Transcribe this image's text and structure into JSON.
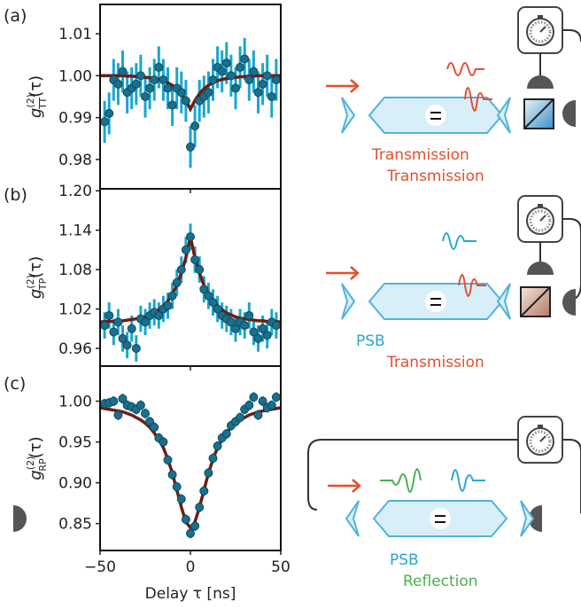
{
  "chart_data": [
    {
      "type": "scatter",
      "panel": "(a)",
      "ylabel": {
        "base": "g",
        "sup": "(2)",
        "sub": "TT",
        "arg": "(τ)"
      },
      "xlim": [
        -50,
        50
      ],
      "xticks": [
        -50,
        0,
        50
      ],
      "ylim": [
        0.973,
        1.017
      ],
      "yticks": [
        0.98,
        0.99,
        {
          "value": 1,
          "label": "1.00"
        },
        1.01
      ],
      "series": [
        {
          "color": "#1a6f8c",
          "error_color": "#1aa6cf",
          "x": [
            -47.5,
            -45,
            -42.5,
            -40,
            -37.5,
            -35,
            -32.5,
            -30,
            -27.5,
            -25,
            -22.5,
            -20,
            -17.5,
            -15,
            -12.5,
            -10,
            -7.5,
            -5,
            -2.5,
            0,
            2.5,
            5,
            7.5,
            10,
            12.5,
            15,
            17.5,
            20,
            22.5,
            25,
            27.5,
            30,
            32.5,
            35,
            37.5,
            40,
            42.5,
            45,
            47.5
          ],
          "values": [
            0.989,
            0.991,
            0.999,
            0.998,
            1.001,
            0.996,
            0.997,
            0.998,
            1.0,
            0.995,
            0.997,
            0.999,
            1.002,
            0.999,
            0.997,
            0.993,
            0.997,
            0.996,
            0.994,
            0.983,
            0.988,
            0.994,
            0.995,
            0.996,
            0.999,
            1.002,
            1.001,
            1.003,
            1.0,
            0.997,
            1.002,
            1.004,
            0.999,
            1.001,
            0.996,
            0.998,
            1.0,
            0.995,
            0.999
          ],
          "errors": [
            0.005,
            0.005,
            0.005,
            0.005,
            0.005,
            0.005,
            0.005,
            0.005,
            0.005,
            0.005,
            0.005,
            0.005,
            0.005,
            0.005,
            0.005,
            0.005,
            0.005,
            0.005,
            0.005,
            0.005,
            0.005,
            0.005,
            0.005,
            0.005,
            0.005,
            0.005,
            0.005,
            0.005,
            0.005,
            0.005,
            0.005,
            0.005,
            0.005,
            0.005,
            0.005,
            0.005,
            0.005,
            0.005,
            0.005
          ]
        }
      ],
      "fit": {
        "color": "#6e1d0f",
        "x": [
          -50,
          -47.5,
          -45,
          -42.5,
          -40,
          -37.5,
          -35,
          -32.5,
          -30,
          -27.5,
          -25,
          -22.5,
          -20,
          -17.5,
          -15,
          -12.5,
          -10,
          -7.5,
          -5,
          -2.5,
          0,
          2.5,
          5,
          7.5,
          10,
          12.5,
          15,
          17.5,
          20,
          22.5,
          25,
          27.5,
          30,
          32.5,
          35,
          37.5,
          40,
          42.5,
          45,
          47.5,
          50
        ],
        "values": [
          1.0,
          1.0,
          1.0,
          1.0,
          1.0,
          1.0,
          0.9999,
          0.9999,
          0.9998,
          0.9997,
          0.9996,
          0.9995,
          0.9993,
          0.9991,
          0.9988,
          0.9983,
          0.9977,
          0.9969,
          0.9957,
          0.9941,
          0.992,
          0.9941,
          0.9957,
          0.9969,
          0.9977,
          0.9983,
          0.9988,
          0.9991,
          0.9993,
          0.9995,
          0.9996,
          0.9997,
          0.9998,
          0.9999,
          0.9999,
          1.0,
          1.0,
          1.0,
          1.0,
          1.0,
          1.0
        ]
      }
    },
    {
      "type": "scatter",
      "panel": "(b)",
      "ylabel": {
        "base": "g",
        "sup": "(2)",
        "sub": "TP",
        "arg": "(τ)"
      },
      "xlim": [
        -50,
        50
      ],
      "xticks": [
        -50,
        0,
        50
      ],
      "ylim": [
        0.933,
        1.203
      ],
      "yticks": [
        0.96,
        1.02,
        1.08,
        1.14,
        {
          "value": 1.2,
          "label": "1.20"
        }
      ],
      "series": [
        {
          "color": "#1a6f8c",
          "error_color": "#1aa6cf",
          "x": [
            -47.5,
            -45,
            -42.5,
            -40,
            -37.5,
            -35,
            -32.5,
            -30,
            -27.5,
            -25,
            -22.5,
            -20,
            -17.5,
            -15,
            -12.5,
            -10,
            -7.5,
            -5,
            -2.5,
            0,
            2.5,
            5,
            7.5,
            10,
            12.5,
            15,
            17.5,
            20,
            22.5,
            25,
            27.5,
            30,
            32.5,
            35,
            37.5,
            40,
            42.5,
            45,
            47.5
          ],
          "values": [
            0.995,
            1.01,
            0.985,
            1.0,
            0.975,
            0.965,
            0.99,
            0.96,
            1.005,
            1.0,
            1.01,
            1.015,
            1.01,
            1.02,
            1.025,
            1.04,
            1.06,
            1.08,
            1.11,
            1.13,
            1.095,
            1.08,
            1.05,
            1.04,
            1.03,
            1.02,
            1.01,
            1.005,
            1.0,
            0.99,
            1.0,
            0.995,
            1.01,
            0.985,
            0.975,
            0.99,
            0.98,
            1.0,
            0.995
          ],
          "errors": [
            0.02,
            0.02,
            0.02,
            0.02,
            0.02,
            0.02,
            0.02,
            0.02,
            0.02,
            0.02,
            0.02,
            0.02,
            0.02,
            0.02,
            0.02,
            0.02,
            0.02,
            0.02,
            0.02,
            0.02,
            0.02,
            0.02,
            0.02,
            0.02,
            0.02,
            0.02,
            0.02,
            0.02,
            0.02,
            0.02,
            0.02,
            0.02,
            0.02,
            0.02,
            0.02,
            0.02,
            0.02,
            0.02,
            0.02
          ]
        }
      ],
      "fit": {
        "color": "#6e1d0f",
        "x": [
          -50,
          -47.5,
          -45,
          -42.5,
          -40,
          -37.5,
          -35,
          -32.5,
          -30,
          -27.5,
          -25,
          -22.5,
          -20,
          -17.5,
          -15,
          -12.5,
          -10,
          -7.5,
          -5,
          -2.5,
          0,
          2.5,
          5,
          7.5,
          10,
          12.5,
          15,
          17.5,
          20,
          22.5,
          25,
          27.5,
          30,
          32.5,
          35,
          37.5,
          40,
          42.5,
          45,
          47.5,
          50
        ],
        "values": [
          1.0,
          1.001,
          1.001,
          1.001,
          1.002,
          1.002,
          1.003,
          1.004,
          1.005,
          1.006,
          1.008,
          1.011,
          1.014,
          1.019,
          1.025,
          1.032,
          1.043,
          1.056,
          1.075,
          1.098,
          1.13,
          1.098,
          1.075,
          1.056,
          1.043,
          1.032,
          1.025,
          1.019,
          1.014,
          1.011,
          1.008,
          1.006,
          1.005,
          1.004,
          1.003,
          1.002,
          1.002,
          1.001,
          1.001,
          1.001,
          1.0
        ]
      }
    },
    {
      "type": "scatter",
      "panel": "(c)",
      "ylabel": {
        "base": "g",
        "sup": "(2)",
        "sub": "RP",
        "arg": "(τ)"
      },
      "xlabel": "Delay τ [ns]",
      "xlim": [
        -50,
        50
      ],
      "xticks": [
        {
          "value": -50,
          "label": "−50"
        },
        0,
        50
      ],
      "ylim": [
        0.817,
        1.043
      ],
      "yticks": [
        0.85,
        {
          "value": 0.9,
          "label": "0.90"
        },
        0.95,
        {
          "value": 1,
          "label": "1.00"
        }
      ],
      "series": [
        {
          "color": "#1a6f8c",
          "error_color": "#1aa6cf",
          "x": [
            -47.5,
            -45,
            -42.5,
            -40,
            -37.5,
            -35,
            -32.5,
            -30,
            -27.5,
            -25,
            -22.5,
            -20,
            -17.5,
            -15,
            -12.5,
            -10,
            -7.5,
            -5,
            -2.5,
            0,
            2.5,
            5,
            7.5,
            10,
            12.5,
            15,
            17.5,
            20,
            22.5,
            25,
            27.5,
            30,
            32.5,
            35,
            37.5,
            40,
            42.5,
            45,
            47.5
          ],
          "values": [
            0.997,
            0.998,
            1.0,
            0.983,
            1.003,
            0.995,
            0.993,
            0.99,
            0.995,
            0.985,
            0.975,
            0.968,
            0.955,
            0.95,
            0.928,
            0.91,
            0.895,
            0.88,
            0.855,
            0.838,
            0.847,
            0.87,
            0.89,
            0.912,
            0.93,
            0.945,
            0.955,
            0.96,
            0.97,
            0.975,
            0.98,
            0.99,
            0.995,
            1.005,
            0.983,
            1.0,
            0.992,
            0.995,
            1.005
          ],
          "errors": [
            0.006,
            0.006,
            0.006,
            0.006,
            0.006,
            0.006,
            0.006,
            0.006,
            0.006,
            0.006,
            0.006,
            0.006,
            0.006,
            0.006,
            0.006,
            0.006,
            0.006,
            0.006,
            0.006,
            0.006,
            0.006,
            0.006,
            0.006,
            0.006,
            0.006,
            0.006,
            0.006,
            0.006,
            0.006,
            0.006,
            0.006,
            0.006,
            0.006,
            0.006,
            0.006,
            0.006,
            0.006,
            0.006,
            0.006
          ]
        }
      ],
      "fit": {
        "color": "#6e1d0f",
        "x": [
          -50,
          -47.5,
          -45,
          -42.5,
          -40,
          -37.5,
          -35,
          -32.5,
          -30,
          -27.5,
          -25,
          -22.5,
          -20,
          -17.5,
          -15,
          -12.5,
          -10,
          -7.5,
          -5,
          -2.5,
          0,
          2.5,
          5,
          7.5,
          10,
          12.5,
          15,
          17.5,
          20,
          22.5,
          25,
          27.5,
          30,
          32.5,
          35,
          37.5,
          40,
          42.5,
          45,
          47.5,
          50
        ],
        "values": [
          0.992,
          0.991,
          0.99,
          0.989,
          0.988,
          0.987,
          0.985,
          0.983,
          0.98,
          0.977,
          0.973,
          0.968,
          0.961,
          0.953,
          0.943,
          0.929,
          0.912,
          0.891,
          0.87,
          0.852,
          0.845,
          0.852,
          0.87,
          0.891,
          0.912,
          0.929,
          0.943,
          0.953,
          0.961,
          0.968,
          0.973,
          0.977,
          0.98,
          0.983,
          0.985,
          0.987,
          0.988,
          0.989,
          0.99,
          0.991,
          0.992
        ]
      }
    }
  ],
  "diagrams": [
    {
      "labels": [
        "Transmission",
        "Transmission"
      ]
    },
    {
      "labels": [
        "PSB",
        "Transmission"
      ]
    },
    {
      "labels": [
        "PSB",
        "Reflection"
      ]
    }
  ]
}
